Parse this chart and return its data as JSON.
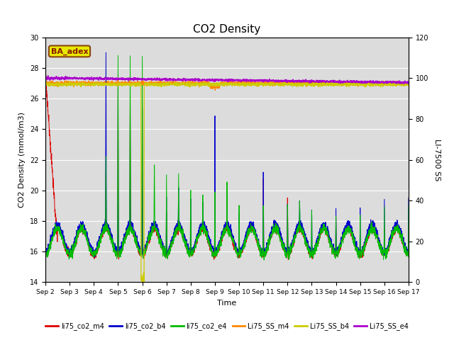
{
  "title": "CO2 Density",
  "xlabel": "Time",
  "ylabel_left": "CO2 Density (mmol/m3)",
  "ylabel_right": "LI-7500 SS",
  "ylim_left": [
    14,
    30
  ],
  "ylim_right": [
    0,
    120
  ],
  "xlim": [
    0,
    15
  ],
  "x_tick_labels": [
    "Sep 2",
    "Sep 3",
    "Sep 4",
    "Sep 5",
    "Sep 6",
    "Sep 7",
    "Sep 8",
    "Sep 9",
    "Sep 10",
    "Sep 11",
    "Sep 12",
    "Sep 13",
    "Sep 14",
    "Sep 15",
    "Sep 16",
    "Sep 17"
  ],
  "background_color": "#dcdcdc",
  "annotation_text": "BA_adex",
  "legend_entries": [
    "li75_co2_m4",
    "li75_co2_b4",
    "li75_co2_e4",
    "Li75_SS_m4",
    "Li75_SS_b4",
    "Li75_SS_e4"
  ],
  "line_colors": {
    "co2_m4": "#dd0000",
    "co2_b4": "#0000cc",
    "co2_e4": "#00bb00",
    "SS_m4": "#ff8800",
    "SS_b4": "#cccc00",
    "SS_e4": "#aa00cc"
  },
  "yticks_left": [
    14,
    16,
    18,
    20,
    22,
    24,
    26,
    28,
    30
  ],
  "yticks_right": [
    0,
    20,
    40,
    60,
    80,
    100,
    120
  ]
}
